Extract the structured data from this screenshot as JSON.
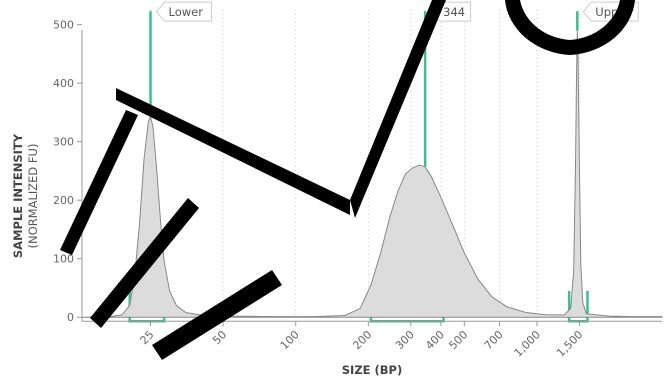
{
  "chart_data": {
    "type": "area",
    "xlabel": "SIZE (BP)",
    "ylabel": "SAMPLE INTENSITY",
    "ylabel_sub": "(NORMALIZED FU)",
    "y_ticks": [
      0,
      100,
      200,
      300,
      400,
      500
    ],
    "ylim": [
      -15,
      525
    ],
    "x_scale": "log",
    "x_ticks": [
      25,
      50,
      100,
      200,
      300,
      400,
      500,
      700,
      1000,
      1500
    ],
    "x_tick_labels": [
      "25",
      "50",
      "100",
      "200",
      "300",
      "400",
      "500",
      "700",
      "1,000",
      "1,500"
    ],
    "xlim": [
      13,
      3300
    ],
    "grid": "dotted vertical",
    "series_points": [
      [
        13,
        0
      ],
      [
        17,
        1
      ],
      [
        19,
        4
      ],
      [
        20.5,
        20
      ],
      [
        21.5,
        70
      ],
      [
        22.5,
        160
      ],
      [
        23.5,
        270
      ],
      [
        24.5,
        335
      ],
      [
        25,
        343
      ],
      [
        25.6,
        325
      ],
      [
        26.5,
        255
      ],
      [
        27.5,
        165
      ],
      [
        28.5,
        95
      ],
      [
        30,
        45
      ],
      [
        32,
        20
      ],
      [
        35,
        8
      ],
      [
        40,
        4
      ],
      [
        50,
        2
      ],
      [
        80,
        1
      ],
      [
        120,
        1
      ],
      [
        160,
        3
      ],
      [
        185,
        15
      ],
      [
        205,
        55
      ],
      [
        225,
        110
      ],
      [
        245,
        170
      ],
      [
        265,
        215
      ],
      [
        285,
        245
      ],
      [
        305,
        255
      ],
      [
        325,
        260
      ],
      [
        344,
        257
      ],
      [
        365,
        240
      ],
      [
        400,
        205
      ],
      [
        450,
        155
      ],
      [
        500,
        110
      ],
      [
        570,
        65
      ],
      [
        650,
        35
      ],
      [
        750,
        18
      ],
      [
        900,
        8
      ],
      [
        1100,
        4
      ],
      [
        1300,
        4
      ],
      [
        1380,
        15
      ],
      [
        1420,
        80
      ],
      [
        1445,
        260
      ],
      [
        1460,
        420
      ],
      [
        1470,
        490
      ],
      [
        1482,
        440
      ],
      [
        1500,
        260
      ],
      [
        1520,
        90
      ],
      [
        1550,
        25
      ],
      [
        1600,
        6
      ],
      [
        2000,
        2
      ],
      [
        2500,
        1
      ],
      [
        3300,
        1
      ]
    ],
    "peaks": [
      {
        "label": "Lower",
        "x": 25,
        "y": 343
      },
      {
        "label": "344",
        "x": 344,
        "y": 257
      },
      {
        "label": "Upper",
        "x": 1470,
        "y": 490
      }
    ],
    "integration_ranges": [
      [
        20.5,
        28.5
      ],
      [
        205,
        410
      ],
      [
        1360,
        1620
      ]
    ],
    "colors": {
      "fill": "#dcdcdc",
      "line": "#888888",
      "accent": "#3dbf96",
      "grid": "#cccccc",
      "axis": "#999999"
    }
  },
  "watermark": "EVO"
}
